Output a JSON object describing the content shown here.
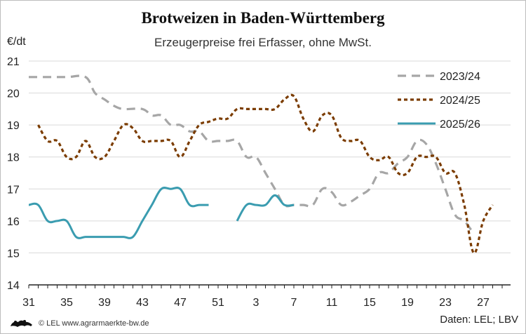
{
  "chart_data": {
    "type": "line",
    "title": "Brotweizen in Baden-Württemberg",
    "subtitle": "Erzeugerpreise frei Erfasser, ohne MwSt.",
    "ylabel": "€/dt",
    "xlabel": "",
    "ylim": [
      14,
      21
    ],
    "y_ticks": [
      14,
      15,
      16,
      17,
      18,
      19,
      20,
      21
    ],
    "x_ticks": [
      "31",
      "35",
      "39",
      "43",
      "47",
      "51",
      "3",
      "7",
      "11",
      "15",
      "19",
      "23",
      "27"
    ],
    "grid": true,
    "legend_position": "top-right",
    "series": [
      {
        "name": "2023/24",
        "color": "#a6a6a6",
        "dash": "dashed",
        "points": [
          [
            "31",
            20.5
          ],
          [
            "33",
            20.5
          ],
          [
            "35",
            20.5
          ],
          [
            "37",
            20.5
          ],
          [
            "38",
            20.0
          ],
          [
            "39",
            19.8
          ],
          [
            "40",
            19.6
          ],
          [
            "41",
            19.5
          ],
          [
            "43",
            19.5
          ],
          [
            "44",
            19.3
          ],
          [
            "45",
            19.3
          ],
          [
            "46",
            19.0
          ],
          [
            "47",
            19.0
          ],
          [
            "48",
            18.8
          ],
          [
            "49",
            18.8
          ],
          [
            "50",
            18.5
          ],
          [
            "51",
            18.5
          ],
          [
            "52",
            18.5
          ],
          [
            "1",
            18.5
          ],
          [
            "2",
            18.0
          ],
          [
            "3",
            18.0
          ],
          [
            "4",
            17.5
          ],
          [
            "5",
            17.0
          ],
          [
            "6",
            16.5
          ],
          [
            "7",
            16.5
          ],
          [
            "8",
            16.5
          ],
          [
            "9",
            16.5
          ],
          [
            "10",
            17.0
          ],
          [
            "11",
            16.9
          ],
          [
            "12",
            16.5
          ],
          [
            "13",
            16.6
          ],
          [
            "14",
            16.8
          ],
          [
            "15",
            17.0
          ],
          [
            "16",
            17.5
          ],
          [
            "17",
            17.5
          ],
          [
            "18",
            17.8
          ],
          [
            "19",
            18.0
          ],
          [
            "20",
            18.5
          ],
          [
            "21",
            18.4
          ],
          [
            "22",
            17.8
          ],
          [
            "23",
            17.0
          ],
          [
            "24",
            16.2
          ],
          [
            "25",
            16.0
          ],
          [
            "26",
            15.6
          ]
        ]
      },
      {
        "name": "2024/25",
        "color": "#7b3c00",
        "dash": "dotted",
        "points": [
          [
            "32",
            19.0
          ],
          [
            "33",
            18.5
          ],
          [
            "34",
            18.5
          ],
          [
            "35",
            18.0
          ],
          [
            "36",
            18.0
          ],
          [
            "37",
            18.5
          ],
          [
            "38",
            18.0
          ],
          [
            "39",
            18.0
          ],
          [
            "40",
            18.5
          ],
          [
            "41",
            19.0
          ],
          [
            "42",
            18.9
          ],
          [
            "43",
            18.5
          ],
          [
            "44",
            18.5
          ],
          [
            "45",
            18.5
          ],
          [
            "46",
            18.5
          ],
          [
            "47",
            18.0
          ],
          [
            "48",
            18.5
          ],
          [
            "49",
            19.0
          ],
          [
            "50",
            19.1
          ],
          [
            "51",
            19.2
          ],
          [
            "52",
            19.2
          ],
          [
            "1",
            19.5
          ],
          [
            "2",
            19.5
          ],
          [
            "3",
            19.5
          ],
          [
            "4",
            19.5
          ],
          [
            "5",
            19.5
          ],
          [
            "6",
            19.8
          ],
          [
            "7",
            19.9
          ],
          [
            "8",
            19.2
          ],
          [
            "9",
            18.8
          ],
          [
            "10",
            19.3
          ],
          [
            "11",
            19.3
          ],
          [
            "12",
            18.6
          ],
          [
            "13",
            18.5
          ],
          [
            "14",
            18.5
          ],
          [
            "15",
            18.0
          ],
          [
            "16",
            17.9
          ],
          [
            "17",
            18.0
          ],
          [
            "18",
            17.5
          ],
          [
            "19",
            17.5
          ],
          [
            "20",
            18.0
          ],
          [
            "21",
            18.0
          ],
          [
            "22",
            18.0
          ],
          [
            "23",
            17.5
          ],
          [
            "24",
            17.5
          ],
          [
            "25",
            16.5
          ],
          [
            "26",
            15.0
          ],
          [
            "27",
            16.0
          ],
          [
            "28",
            16.5
          ]
        ]
      },
      {
        "name": "2025/26",
        "color": "#3a9cb0",
        "dash": "solid",
        "segments": [
          [
            [
              "31",
              16.5
            ],
            [
              "32",
              16.5
            ],
            [
              "33",
              16.0
            ],
            [
              "34",
              16.0
            ],
            [
              "35",
              16.0
            ],
            [
              "36",
              15.5
            ],
            [
              "37",
              15.5
            ],
            [
              "38",
              15.5
            ],
            [
              "39",
              15.5
            ],
            [
              "40",
              15.5
            ],
            [
              "41",
              15.5
            ],
            [
              "42",
              15.5
            ],
            [
              "43",
              16.0
            ],
            [
              "44",
              16.5
            ],
            [
              "45",
              17.0
            ],
            [
              "46",
              17.0
            ],
            [
              "47",
              17.0
            ],
            [
              "48",
              16.5
            ],
            [
              "49",
              16.5
            ],
            [
              "50",
              16.5
            ]
          ],
          [
            [
              "1",
              16.0
            ],
            [
              "2",
              16.5
            ],
            [
              "3",
              16.5
            ],
            [
              "4",
              16.5
            ],
            [
              "5",
              16.8
            ],
            [
              "6",
              16.5
            ],
            [
              "7",
              16.5
            ]
          ]
        ]
      }
    ]
  },
  "footer": {
    "source_left": "© LEL www.agrarmaerkte-bw.de",
    "source_right": "Daten: LEL; LBV",
    "logo": "baden-wuerttemberg-lion-logo"
  }
}
